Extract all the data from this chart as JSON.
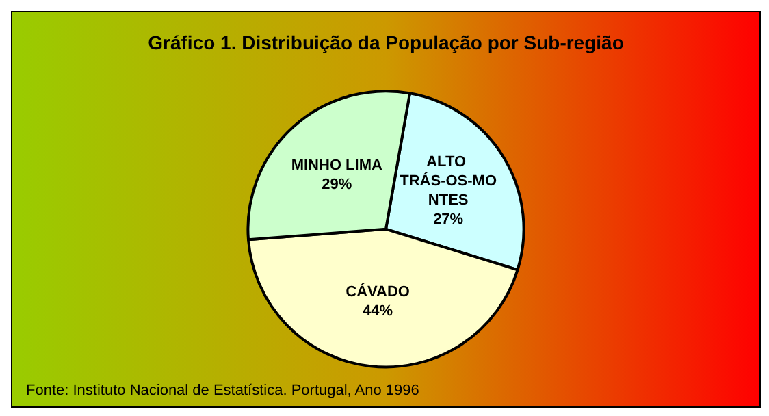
{
  "chart_data": {
    "type": "pie",
    "title": "Gráfico 1. Distribuição da População por Sub-região",
    "categories": [
      "ALTO TRÁS-OS-MONTES",
      "CÁVADO",
      "MINHO LIMA"
    ],
    "values": [
      27,
      44,
      29
    ],
    "value_labels": [
      "27%",
      "44%",
      "29%"
    ],
    "colors": [
      "#ccffff",
      "#ffffcc",
      "#ccffcc"
    ],
    "legend": false,
    "annotations": [
      "Fonte: Instituto Nacional de Estatística. Portugal, Ano 1996"
    ]
  }
}
